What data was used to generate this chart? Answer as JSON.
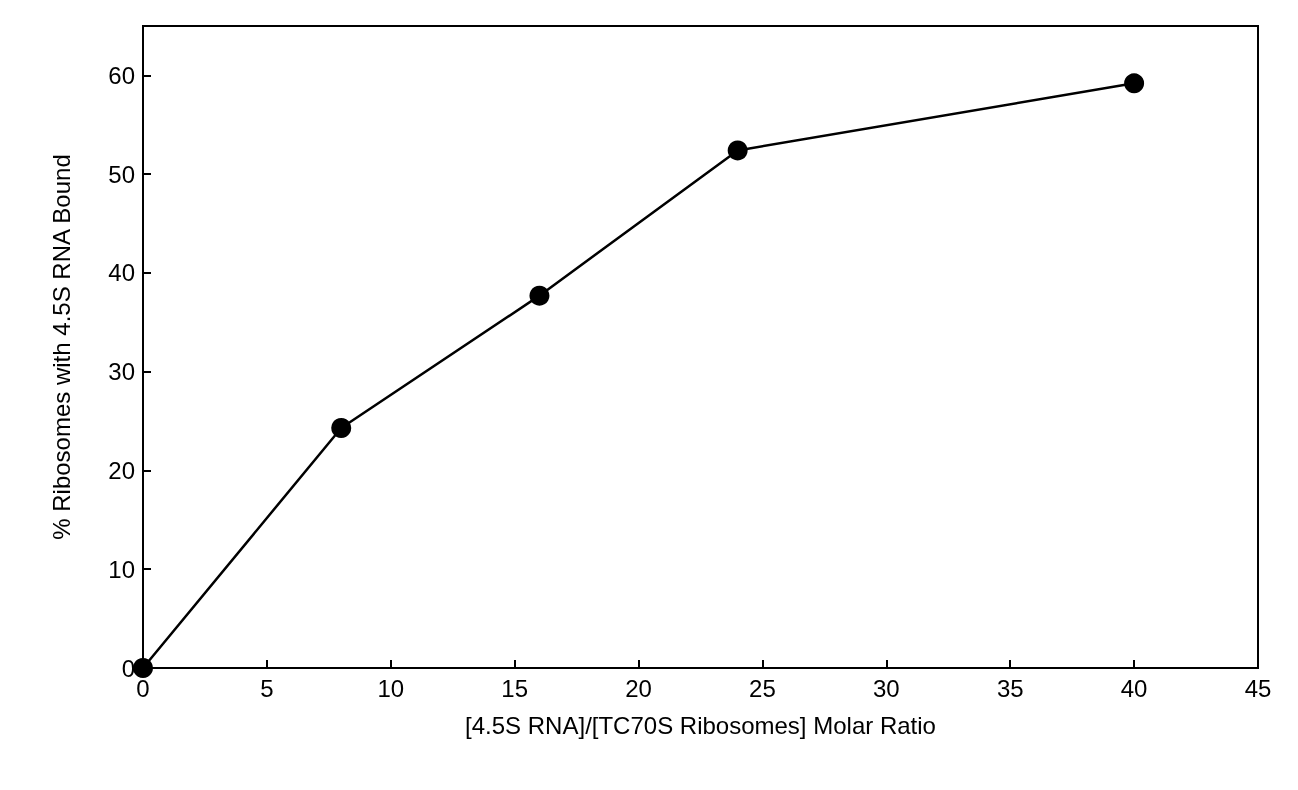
{
  "chart_data": {
    "type": "line",
    "xlabel": "[4.5S RNA]/[TC70S Ribosomes] Molar Ratio",
    "ylabel": "% Ribosomes with 4.5S RNA Bound",
    "x": [
      0,
      8,
      16,
      24,
      40
    ],
    "series": [
      {
        "color": "#000000",
        "values": [
          0,
          24.3,
          37.7,
          52.4,
          59.2
        ]
      }
    ],
    "xlim": [
      0,
      45
    ],
    "xticks": [
      0,
      5,
      10,
      15,
      20,
      25,
      30,
      35,
      40,
      45
    ],
    "ylim": [
      0,
      65
    ],
    "yticks": [
      0,
      10,
      20,
      30,
      40,
      50,
      60
    ],
    "grid": false,
    "marker": "circle",
    "line_style": "solid"
  }
}
